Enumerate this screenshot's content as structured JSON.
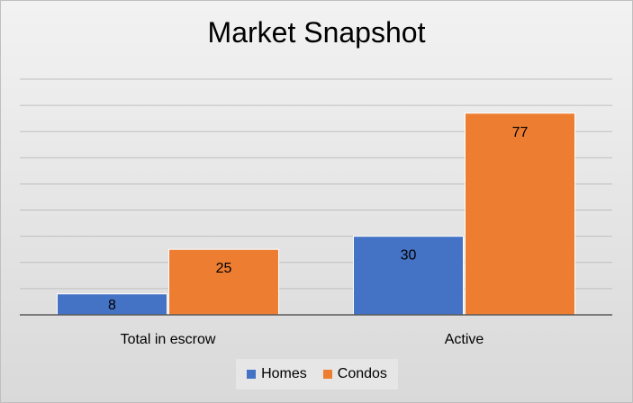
{
  "chart_data": {
    "type": "bar",
    "title": "Market Snapshot",
    "categories": [
      "Total in escrow",
      "Active"
    ],
    "series": [
      {
        "name": "Homes",
        "values": [
          8,
          30
        ],
        "color": "#4472c4"
      },
      {
        "name": "Condos",
        "values": [
          25,
          77
        ],
        "color": "#ed7d31"
      }
    ],
    "ylim": [
      0,
      90
    ],
    "grid": true,
    "legend": "bottom",
    "xlabel": "",
    "ylabel": ""
  }
}
